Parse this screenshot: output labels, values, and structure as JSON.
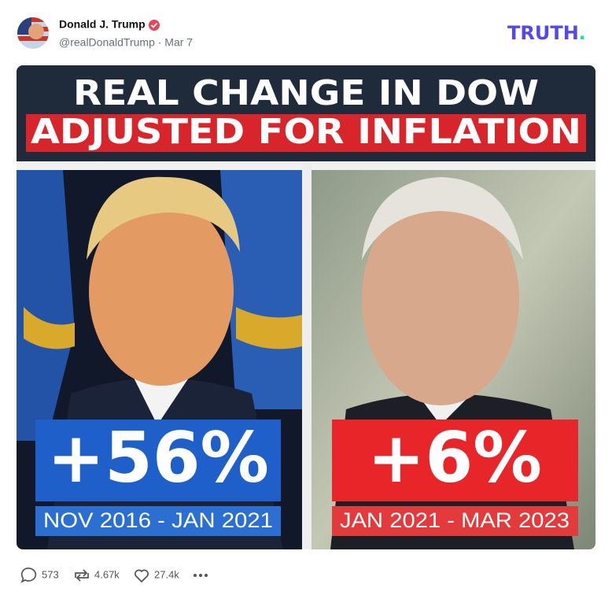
{
  "post": {
    "author": "Donald J. Trump",
    "meta": "@realDonaldTrump · Mar 7",
    "logo": {
      "word": "TRUTH",
      "dot": "."
    },
    "image": {
      "title_line1": "REAL CHANGE IN DOW",
      "title_line2": "ADJUSTED FOR INFLATION",
      "left": {
        "change": "+56%",
        "period": "NOV 2016 - JAN 2021"
      },
      "right": {
        "change": "+6%",
        "period": "JAN 2021 - MAR 2023"
      }
    },
    "stats": {
      "replies": "573",
      "reposts": "4.67k",
      "likes": "27.4k"
    }
  }
}
